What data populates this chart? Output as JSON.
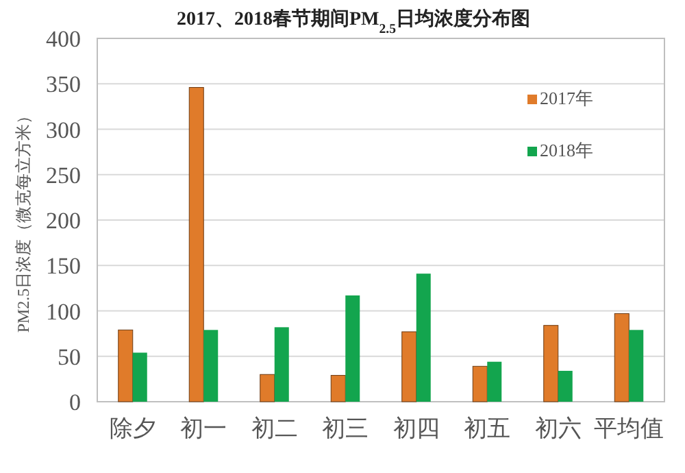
{
  "chart_data": {
    "type": "bar",
    "title": "2017、2018春节期间PM$_{2.5}$日均浓度分布图",
    "ylabel": "PM2.5日浓度（微克每立方米）",
    "categories": [
      "除夕",
      "初一",
      "初二",
      "初三",
      "初四",
      "初五",
      "初六",
      "平均值"
    ],
    "series": [
      {
        "name": "2017年",
        "color": "#e07b2a",
        "values": [
          79,
          346,
          30,
          29,
          77,
          39,
          84,
          97
        ]
      },
      {
        "name": "2018年",
        "color": "#13a54e",
        "values": [
          54,
          79,
          82,
          117,
          141,
          44,
          34,
          79
        ]
      }
    ],
    "ylim": [
      0,
      400
    ],
    "yticks": [
      0,
      50,
      100,
      150,
      200,
      250,
      300,
      350,
      400
    ],
    "grid": "y",
    "legend": "top right"
  }
}
